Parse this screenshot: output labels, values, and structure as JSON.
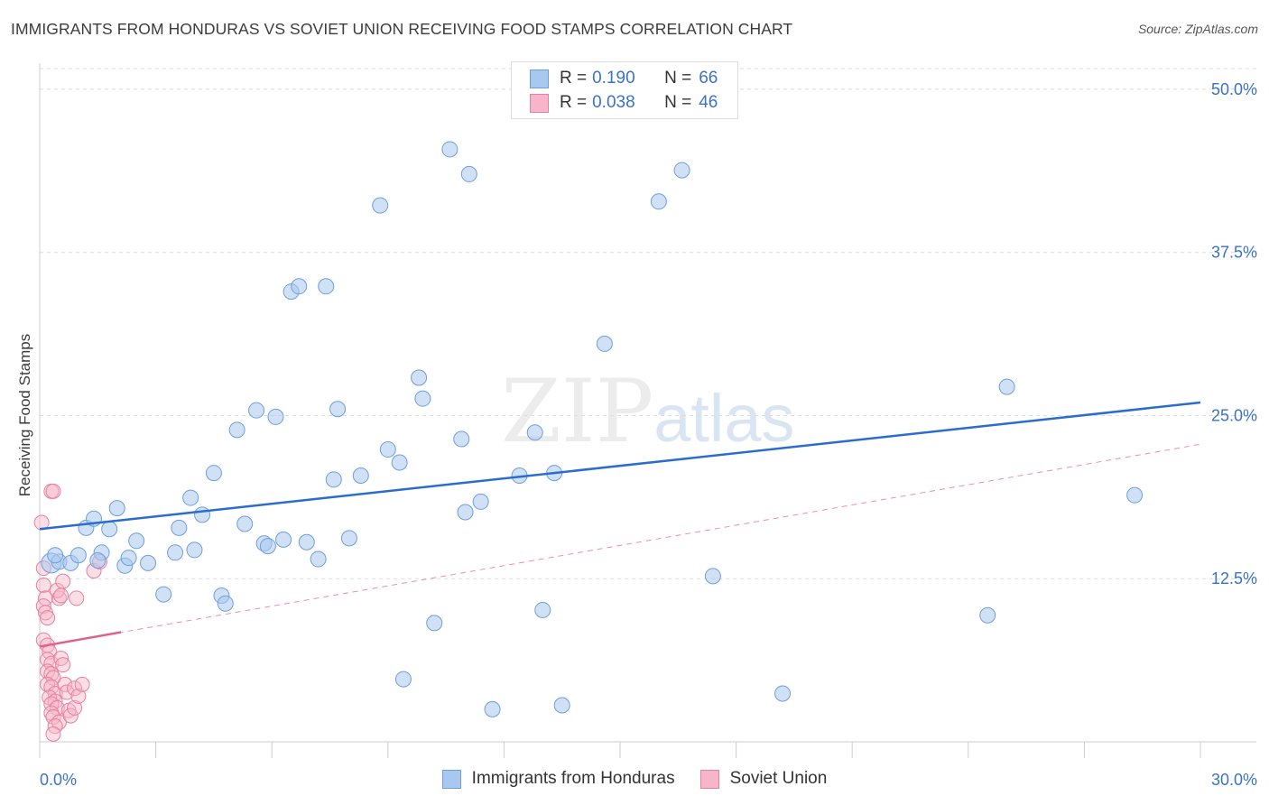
{
  "title": "IMMIGRANTS FROM HONDURAS VS SOVIET UNION RECEIVING FOOD STAMPS CORRELATION CHART",
  "source": "Source: ZipAtlas.com",
  "watermark": {
    "a": "ZIP",
    "b": "atlas"
  },
  "legend": {
    "r_label": "R =",
    "n_label": "N =",
    "series": [
      {
        "r": "0.190",
        "n": "66"
      },
      {
        "r": "0.038",
        "n": "46"
      }
    ]
  },
  "colors": {
    "blue_fill": "#a9c8ef",
    "blue_stroke": "#6d9fdc",
    "blue_line": "#2a6ccf",
    "pink_fill": "#f6b5c8",
    "pink_stroke": "#e97fa0",
    "pink_line": "#e0608a",
    "axis_text": "#3b73c4",
    "grid": "#dddddd"
  },
  "chart_data": {
    "type": "scatter",
    "title": "IMMIGRANTS FROM HONDURAS VS SOVIET UNION RECEIVING FOOD STAMPS CORRELATION CHART",
    "xlabel": "",
    "ylabel": "Receiving Food Stamps",
    "xlim": [
      0,
      30
    ],
    "ylim": [
      0,
      52
    ],
    "x_tick_labels": [
      "0.0%",
      "30.0%"
    ],
    "y_ticks": [
      12.5,
      25.0,
      37.5,
      50.0
    ],
    "y_tick_labels": [
      "12.5%",
      "25.0%",
      "37.5%",
      "50.0%"
    ],
    "grid": true,
    "series": [
      {
        "name": "Immigrants from Honduras",
        "r": 0.19,
        "n": 66,
        "trend": {
          "x": [
            0,
            30
          ],
          "y": [
            16.3,
            26.0
          ]
        },
        "points": [
          [
            0.3,
            13.7
          ],
          [
            0.5,
            13.8
          ],
          [
            0.8,
            13.7
          ],
          [
            1.0,
            14.3
          ],
          [
            1.2,
            16.4
          ],
          [
            1.4,
            17.1
          ],
          [
            1.6,
            14.5
          ],
          [
            1.8,
            16.3
          ],
          [
            2.0,
            17.9
          ],
          [
            2.2,
            13.5
          ],
          [
            2.3,
            14.1
          ],
          [
            2.5,
            15.4
          ],
          [
            2.8,
            13.7
          ],
          [
            3.2,
            11.3
          ],
          [
            3.5,
            14.5
          ],
          [
            3.6,
            16.4
          ],
          [
            3.9,
            18.7
          ],
          [
            4.0,
            14.7
          ],
          [
            4.2,
            17.4
          ],
          [
            4.5,
            20.6
          ],
          [
            4.7,
            11.2
          ],
          [
            4.8,
            10.6
          ],
          [
            5.1,
            23.9
          ],
          [
            5.3,
            16.7
          ],
          [
            5.6,
            25.4
          ],
          [
            5.8,
            15.2
          ],
          [
            5.9,
            15.0
          ],
          [
            6.1,
            24.9
          ],
          [
            6.3,
            15.5
          ],
          [
            6.5,
            34.5
          ],
          [
            6.7,
            34.9
          ],
          [
            6.9,
            15.3
          ],
          [
            7.2,
            14.0
          ],
          [
            7.4,
            34.9
          ],
          [
            7.6,
            20.1
          ],
          [
            7.7,
            25.5
          ],
          [
            8.0,
            15.6
          ],
          [
            8.3,
            20.4
          ],
          [
            8.8,
            41.1
          ],
          [
            9.0,
            22.4
          ],
          [
            9.3,
            21.4
          ],
          [
            9.4,
            4.8
          ],
          [
            9.8,
            27.9
          ],
          [
            9.9,
            26.3
          ],
          [
            10.2,
            9.1
          ],
          [
            10.6,
            45.4
          ],
          [
            10.9,
            23.2
          ],
          [
            11.0,
            17.6
          ],
          [
            11.1,
            43.5
          ],
          [
            11.4,
            18.4
          ],
          [
            11.7,
            2.5
          ],
          [
            12.4,
            20.4
          ],
          [
            12.8,
            23.7
          ],
          [
            13.0,
            10.1
          ],
          [
            13.3,
            20.6
          ],
          [
            13.5,
            2.8
          ],
          [
            14.6,
            30.5
          ],
          [
            16.0,
            41.4
          ],
          [
            16.6,
            43.8
          ],
          [
            17.4,
            12.7
          ],
          [
            19.2,
            3.7
          ],
          [
            24.5,
            9.7
          ],
          [
            25.0,
            27.2
          ],
          [
            28.3,
            18.9
          ],
          [
            0.4,
            14.3
          ],
          [
            1.5,
            13.9
          ]
        ]
      },
      {
        "name": "Soviet Union",
        "r": 0.038,
        "n": 46,
        "trend": {
          "x": [
            0,
            2.1
          ],
          "y": [
            7.3,
            8.4
          ]
        },
        "trend_extended": {
          "x": [
            0,
            30
          ],
          "y": [
            7.3,
            22.8
          ]
        },
        "points": [
          [
            0.05,
            16.8
          ],
          [
            0.1,
            13.3
          ],
          [
            0.1,
            12.0
          ],
          [
            0.15,
            11.0
          ],
          [
            0.1,
            10.4
          ],
          [
            0.15,
            9.9
          ],
          [
            0.2,
            9.5
          ],
          [
            0.1,
            7.8
          ],
          [
            0.2,
            7.4
          ],
          [
            0.25,
            6.9
          ],
          [
            0.2,
            6.3
          ],
          [
            0.3,
            6.0
          ],
          [
            0.2,
            5.4
          ],
          [
            0.3,
            5.2
          ],
          [
            0.35,
            4.9
          ],
          [
            0.2,
            4.4
          ],
          [
            0.3,
            4.2
          ],
          [
            0.4,
            3.7
          ],
          [
            0.25,
            3.4
          ],
          [
            0.4,
            3.1
          ],
          [
            0.3,
            2.9
          ],
          [
            0.45,
            2.6
          ],
          [
            0.3,
            2.2
          ],
          [
            0.35,
            1.9
          ],
          [
            0.5,
            1.5
          ],
          [
            0.4,
            1.2
          ],
          [
            0.35,
            0.6
          ],
          [
            0.5,
            11.0
          ],
          [
            0.45,
            11.6
          ],
          [
            0.55,
            11.2
          ],
          [
            0.6,
            12.3
          ],
          [
            0.55,
            6.4
          ],
          [
            0.6,
            5.9
          ],
          [
            0.65,
            4.4
          ],
          [
            0.7,
            3.8
          ],
          [
            0.75,
            2.4
          ],
          [
            0.8,
            2.0
          ],
          [
            0.9,
            2.6
          ],
          [
            0.9,
            4.1
          ],
          [
            0.95,
            11.0
          ],
          [
            0.3,
            19.2
          ],
          [
            0.35,
            19.2
          ],
          [
            1.0,
            3.5
          ],
          [
            1.4,
            13.1
          ],
          [
            1.55,
            13.8
          ],
          [
            1.1,
            4.4
          ]
        ]
      }
    ]
  }
}
